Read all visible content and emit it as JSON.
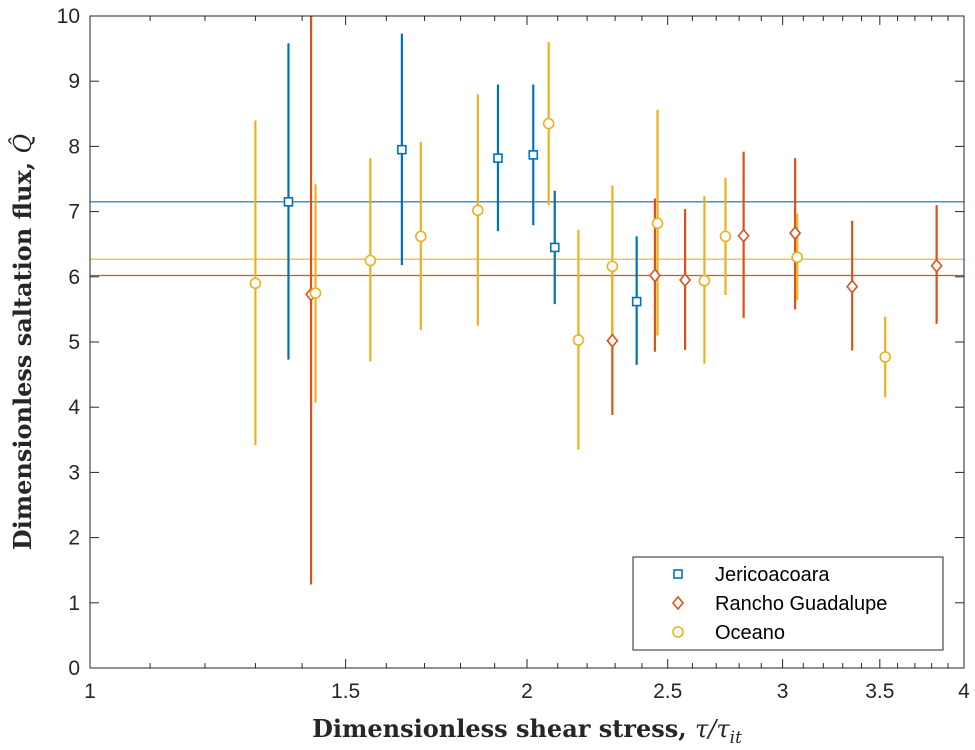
{
  "chart_data": {
    "type": "scatter",
    "xlabel": "Dimensionless shear stress, ",
    "xlabel_math": "τ/τ",
    "xlabel_sub": "it",
    "ylabel": "Dimensionless saltation flux, ",
    "ylabel_math": "Q̂",
    "x_scale": "log",
    "xlim": [
      1,
      4
    ],
    "ylim": [
      0,
      10
    ],
    "x_ticks": [
      1,
      1.5,
      2,
      2.5,
      3,
      3.5,
      4
    ],
    "x_tick_labels": [
      "1",
      "1.5",
      "2",
      "2.5",
      "3",
      "3.5",
      "4"
    ],
    "y_ticks": [
      0,
      1,
      2,
      3,
      4,
      5,
      6,
      7,
      8,
      9,
      10
    ],
    "y_tick_labels": [
      "0",
      "1",
      "2",
      "3",
      "4",
      "5",
      "6",
      "7",
      "8",
      "9",
      "10"
    ],
    "grid": false,
    "legend_position": "bottom-right",
    "series": [
      {
        "name": "Jericoacoara",
        "marker": "square",
        "color": "#0072BD",
        "mean": 7.15,
        "points": [
          {
            "x": 1.37,
            "y": 7.15,
            "lo": 4.73,
            "hi": 9.58
          },
          {
            "x": 1.64,
            "y": 7.95,
            "lo": 6.18,
            "hi": 9.73
          },
          {
            "x": 1.91,
            "y": 7.82,
            "lo": 6.7,
            "hi": 8.95
          },
          {
            "x": 2.02,
            "y": 7.87,
            "lo": 6.79,
            "hi": 8.95
          },
          {
            "x": 2.09,
            "y": 6.45,
            "lo": 5.58,
            "hi": 7.32
          },
          {
            "x": 2.38,
            "y": 5.62,
            "lo": 4.65,
            "hi": 6.62
          }
        ]
      },
      {
        "name": "Rancho Guadalupe",
        "marker": "diamond",
        "color": "#D95319",
        "mean": 6.02,
        "points": [
          {
            "x": 1.42,
            "y": 5.73,
            "lo": 1.28,
            "hi": 10.0
          },
          {
            "x": 2.29,
            "y": 5.02,
            "lo": 3.88,
            "hi": 6.15
          },
          {
            "x": 2.45,
            "y": 6.02,
            "lo": 4.85,
            "hi": 7.2
          },
          {
            "x": 2.57,
            "y": 5.95,
            "lo": 4.88,
            "hi": 7.04
          },
          {
            "x": 2.82,
            "y": 6.63,
            "lo": 5.37,
            "hi": 7.92
          },
          {
            "x": 3.06,
            "y": 6.67,
            "lo": 5.5,
            "hi": 7.82
          },
          {
            "x": 3.35,
            "y": 5.85,
            "lo": 4.87,
            "hi": 6.86
          },
          {
            "x": 3.83,
            "y": 6.17,
            "lo": 5.28,
            "hi": 7.1
          }
        ]
      },
      {
        "name": "Oceano",
        "marker": "circle",
        "color": "#EDB120",
        "mean": 6.27,
        "points": [
          {
            "x": 1.3,
            "y": 5.9,
            "lo": 3.42,
            "hi": 8.4
          },
          {
            "x": 1.43,
            "y": 5.75,
            "lo": 4.07,
            "hi": 7.42
          },
          {
            "x": 1.56,
            "y": 6.25,
            "lo": 4.7,
            "hi": 7.82
          },
          {
            "x": 1.69,
            "y": 6.62,
            "lo": 5.18,
            "hi": 8.07
          },
          {
            "x": 1.85,
            "y": 7.02,
            "lo": 5.25,
            "hi": 8.8
          },
          {
            "x": 2.07,
            "y": 8.35,
            "lo": 7.1,
            "hi": 9.6
          },
          {
            "x": 2.17,
            "y": 5.03,
            "lo": 3.35,
            "hi": 6.72
          },
          {
            "x": 2.29,
            "y": 6.16,
            "lo": 4.92,
            "hi": 7.4
          },
          {
            "x": 2.46,
            "y": 6.82,
            "lo": 5.1,
            "hi": 8.56
          },
          {
            "x": 2.65,
            "y": 5.94,
            "lo": 4.67,
            "hi": 7.24
          },
          {
            "x": 2.74,
            "y": 6.62,
            "lo": 5.72,
            "hi": 7.52
          },
          {
            "x": 3.07,
            "y": 6.3,
            "lo": 5.64,
            "hi": 6.97
          },
          {
            "x": 3.53,
            "y": 4.77,
            "lo": 4.15,
            "hi": 5.39
          }
        ]
      }
    ]
  }
}
